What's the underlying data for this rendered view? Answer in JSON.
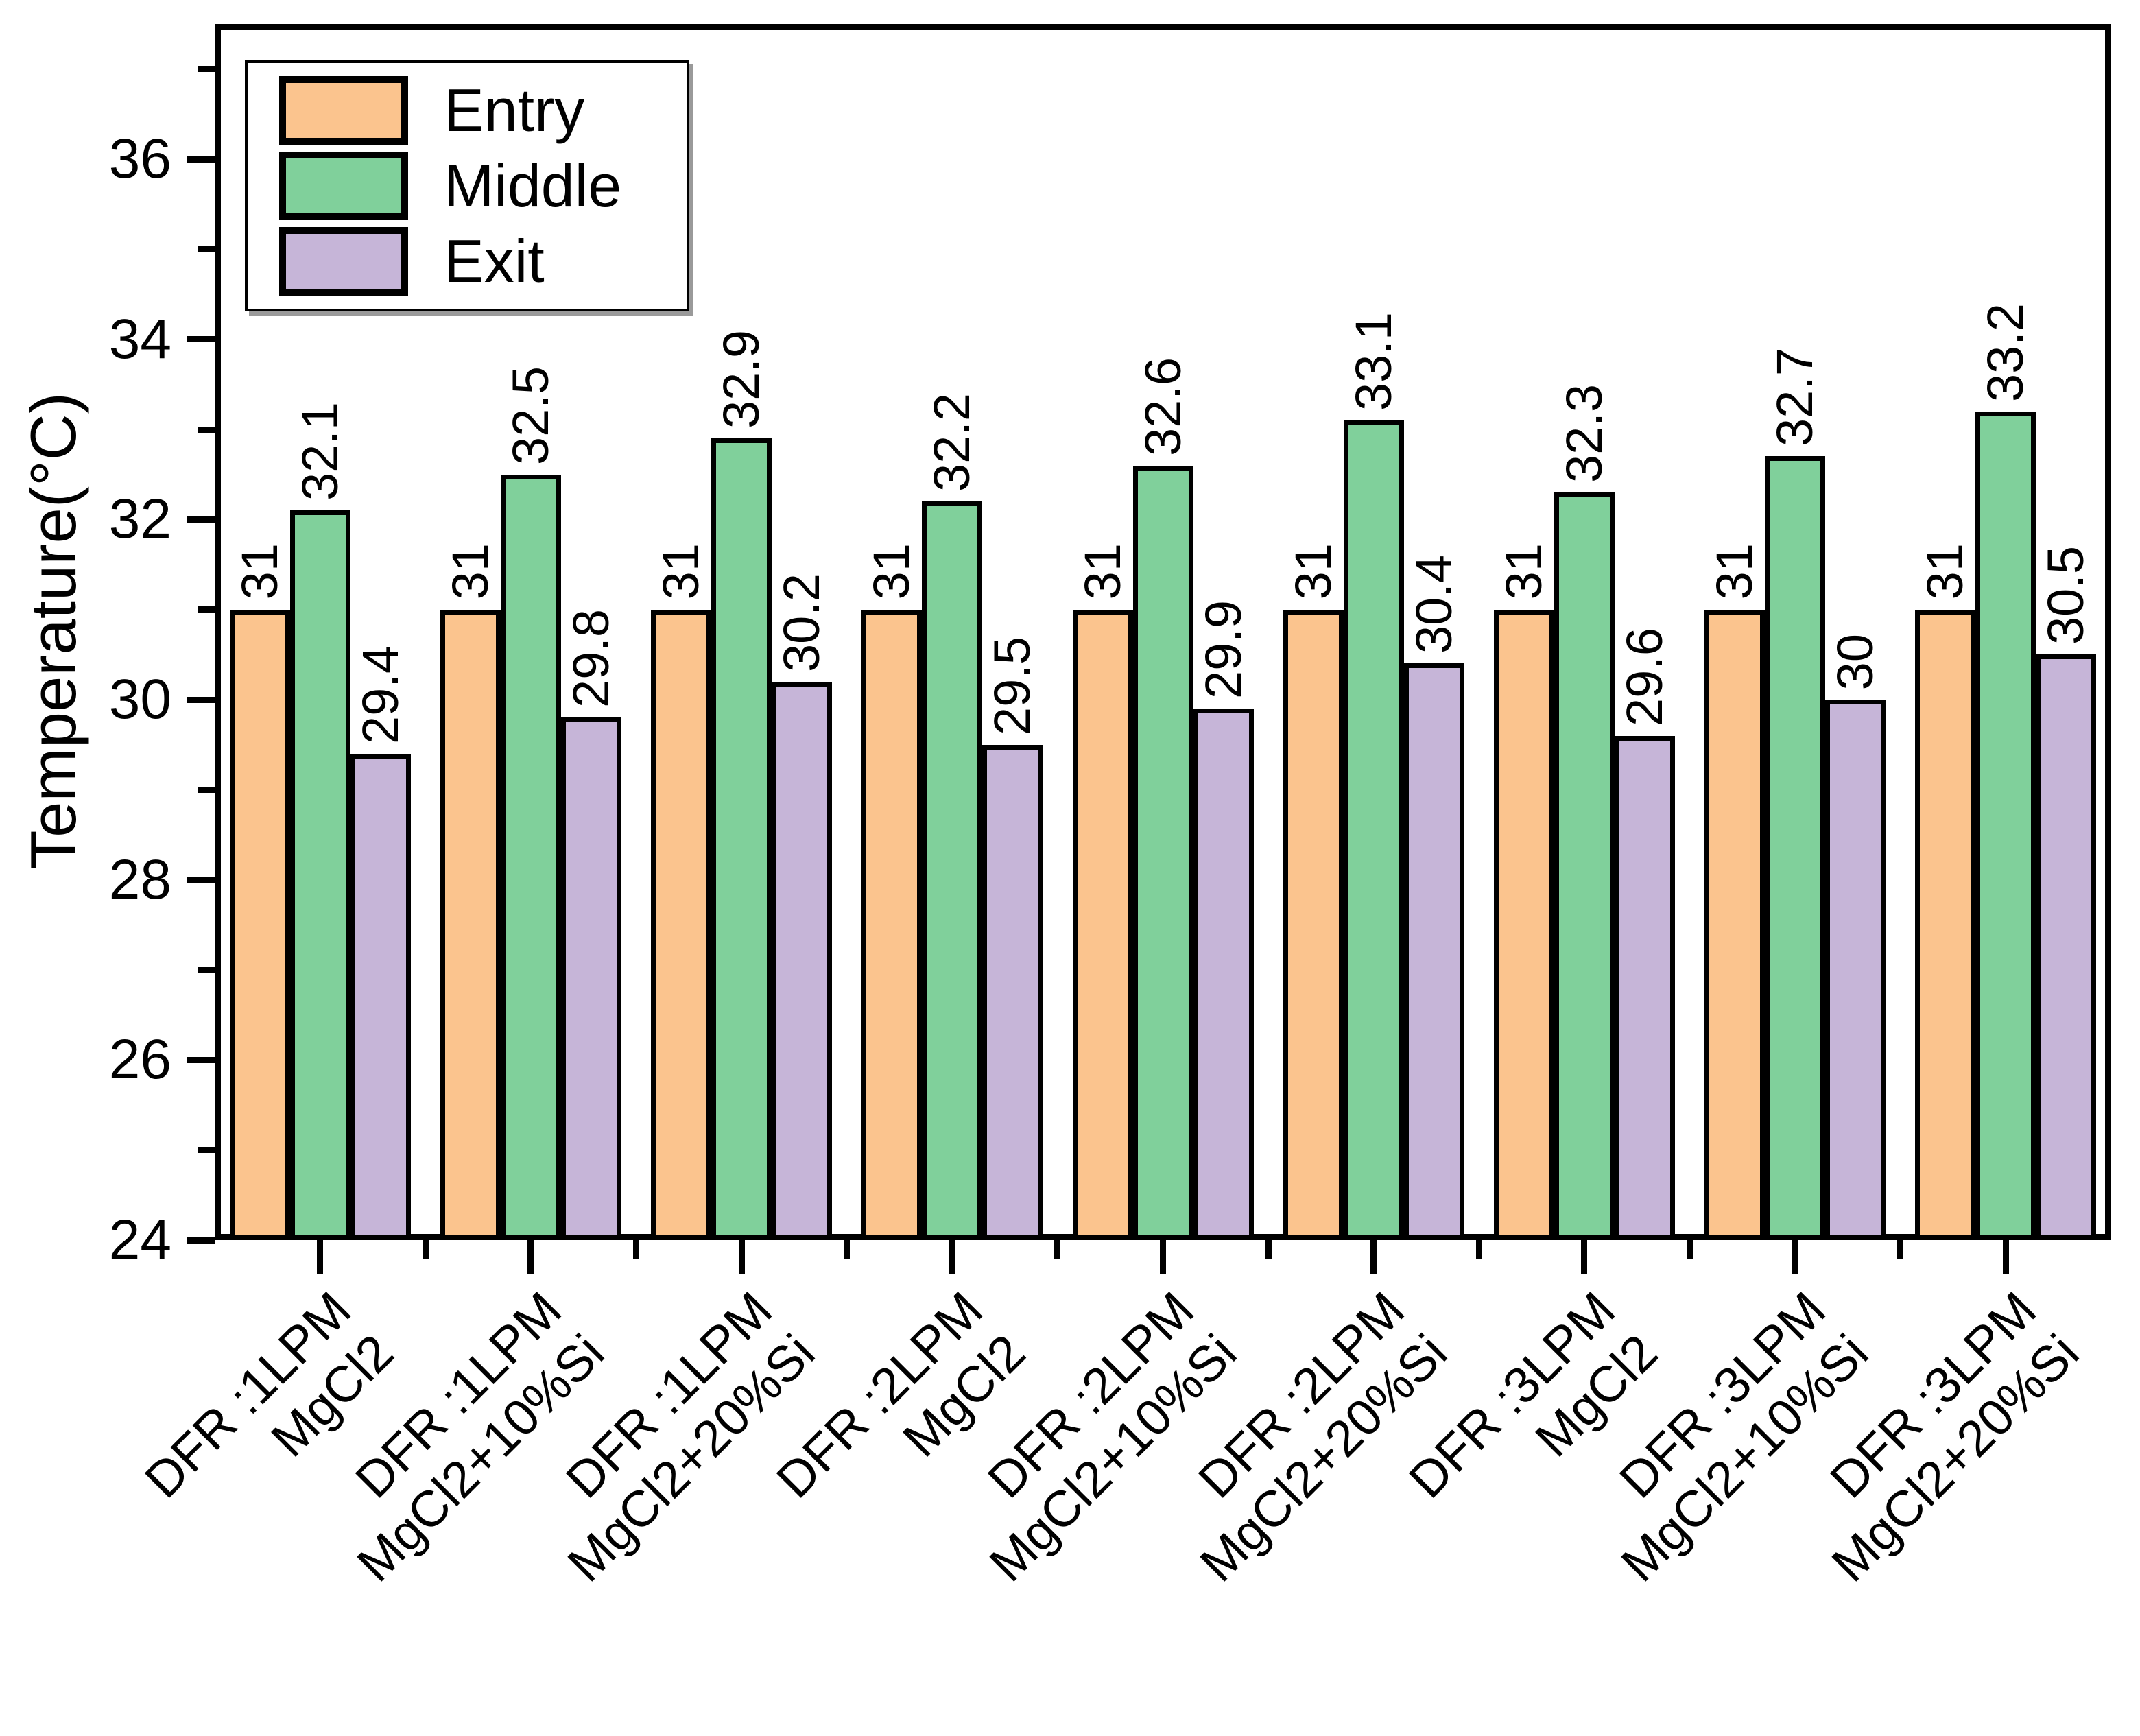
{
  "chart_data": {
    "type": "bar",
    "title": "",
    "xlabel": "",
    "ylabel": "Temperature(°C)",
    "ylim": [
      24,
      37.5
    ],
    "yticks_major": [
      24,
      26,
      28,
      30,
      32,
      34,
      36
    ],
    "yticks_minor": [
      25,
      27,
      29,
      31,
      33,
      35,
      37
    ],
    "grid": false,
    "legend_position": "top-left",
    "bar_border_color": "#000000",
    "categories": [
      {
        "line1": "DFR :1LPM",
        "line2": "MgCl2"
      },
      {
        "line1": "DFR :1LPM",
        "line2": "MgCl2+10%Si"
      },
      {
        "line1": "DFR :1LPM",
        "line2": "MgCl2+20%Si"
      },
      {
        "line1": "DFR :2LPM",
        "line2": "MgCl2"
      },
      {
        "line1": "DFR :2LPM",
        "line2": "MgCl2+10%Si"
      },
      {
        "line1": "DFR :2LPM",
        "line2": "MgCl2+20%Si"
      },
      {
        "line1": "DFR :3LPM",
        "line2": "MgCl2"
      },
      {
        "line1": "DFR :3LPM",
        "line2": "MgCl2+10%Si"
      },
      {
        "line1": "DFR :3LPM",
        "line2": "MgCl2+20%Si"
      }
    ],
    "series": [
      {
        "name": "Entry",
        "color": "#FBC48E",
        "values": [
          31,
          31,
          31,
          31,
          31,
          31,
          31,
          31,
          31
        ],
        "labels": [
          "31",
          "31",
          "31",
          "31",
          "31",
          "31",
          "31",
          "31",
          "31"
        ]
      },
      {
        "name": "Middle",
        "color": "#80D09B",
        "values": [
          32.1,
          32.5,
          32.9,
          32.2,
          32.6,
          33.1,
          32.3,
          32.7,
          33.2
        ],
        "labels": [
          "32.1",
          "32.5",
          "32.9",
          "32.2",
          "32.6",
          "33.1",
          "32.3",
          "32.7",
          "33.2"
        ]
      },
      {
        "name": "Exit",
        "color": "#C6B5D8",
        "values": [
          29.4,
          29.8,
          30.2,
          29.5,
          29.9,
          30.4,
          29.6,
          30,
          30.5
        ],
        "labels": [
          "29.4",
          "29.8",
          "30.2",
          "29.5",
          "29.9",
          "30.4",
          "29.6",
          "30",
          "30.5"
        ]
      }
    ]
  }
}
